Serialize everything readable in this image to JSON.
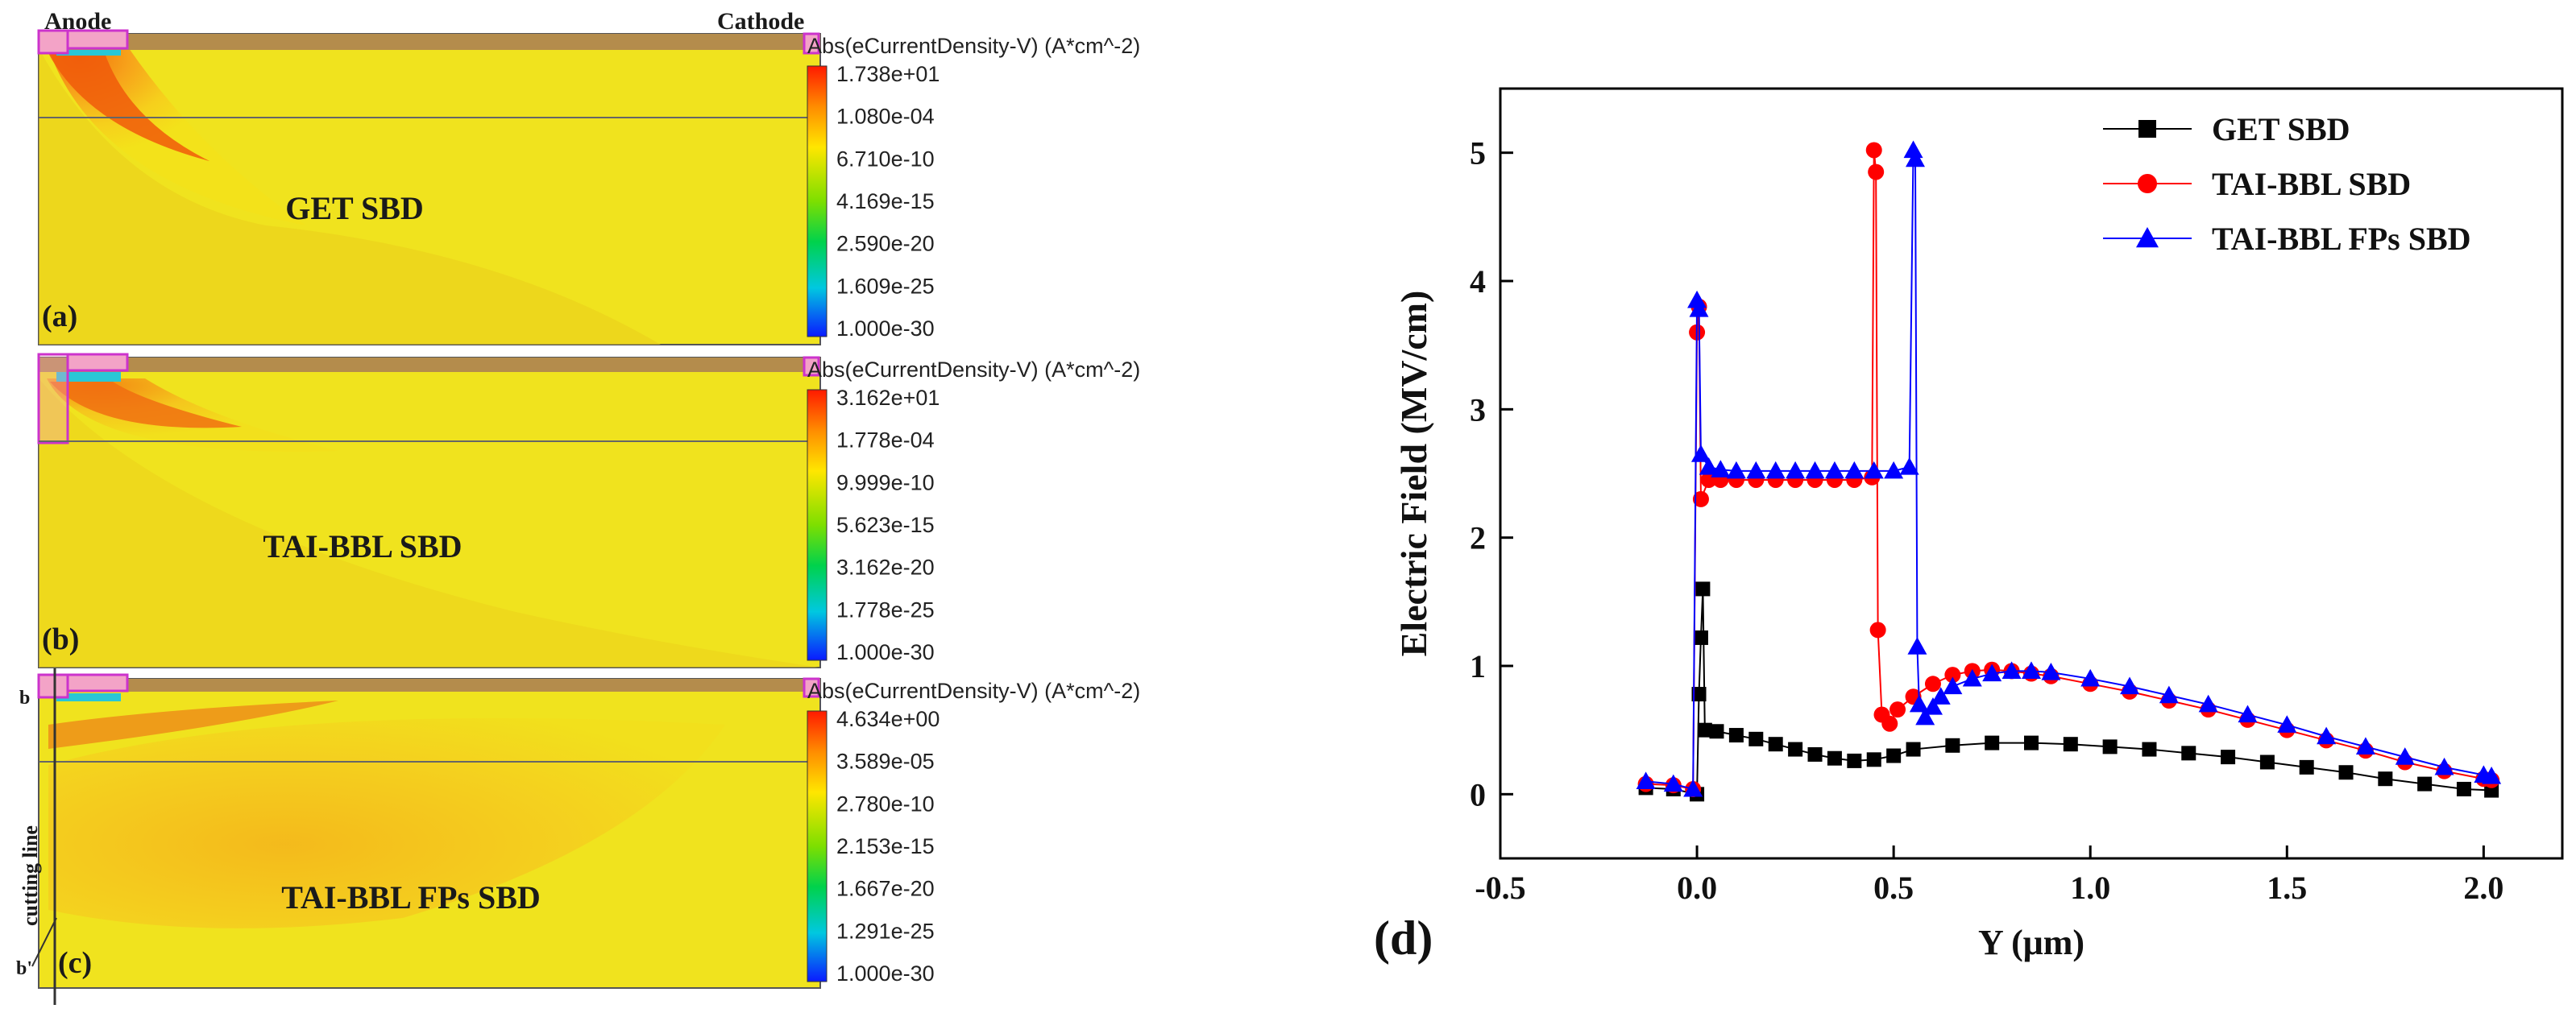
{
  "panels": {
    "anode_label": "Anode",
    "cathode_label": "Cathode",
    "cut_top": "b",
    "cut_bottom": "b'",
    "cutting_line_label": "cutting line",
    "items": [
      {
        "letter": "(a)",
        "device": "GET SBD",
        "colorbar_title": "Abs(eCurrentDensity-V) (A*cm^-2)",
        "ticks": [
          "1.738e+01",
          "1.080e-04",
          "6.710e-10",
          "4.169e-15",
          "2.590e-20",
          "1.609e-25",
          "1.000e-30"
        ]
      },
      {
        "letter": "(b)",
        "device": "TAI-BBL SBD",
        "colorbar_title": "Abs(eCurrentDensity-V) (A*cm^-2)",
        "ticks": [
          "3.162e+01",
          "1.778e-04",
          "9.999e-10",
          "5.623e-15",
          "3.162e-20",
          "1.778e-25",
          "1.000e-30"
        ]
      },
      {
        "letter": "(c)",
        "device": "TAI-BBL FPs SBD",
        "colorbar_title": "Abs(eCurrentDensity-V) (A*cm^-2)",
        "ticks": [
          "4.634e+00",
          "3.589e-05",
          "2.780e-10",
          "2.153e-15",
          "1.667e-20",
          "1.291e-25",
          "1.000e-30"
        ]
      }
    ]
  },
  "chart_data": {
    "type": "line",
    "panel_label": "(d)",
    "title": "",
    "xlabel": "Y (μm)",
    "ylabel": "Electric Field (MV/cm)",
    "xlim": [
      -0.5,
      2.2
    ],
    "ylim": [
      -0.5,
      5.5
    ],
    "xticks": [
      "-0.5",
      "0.0",
      "0.5",
      "1.0",
      "1.5",
      "2.0"
    ],
    "yticks": [
      "0",
      "1",
      "2",
      "3",
      "4",
      "5"
    ],
    "legend_position": "top-right",
    "series": [
      {
        "name": "GET SBD",
        "color": "#000000",
        "marker": "square",
        "x": [
          -0.13,
          -0.06,
          0.0,
          0.005,
          0.01,
          0.015,
          0.02,
          0.05,
          0.1,
          0.15,
          0.2,
          0.25,
          0.3,
          0.35,
          0.4,
          0.45,
          0.5,
          0.55,
          0.65,
          0.75,
          0.85,
          0.95,
          1.05,
          1.15,
          1.25,
          1.35,
          1.45,
          1.55,
          1.65,
          1.75,
          1.85,
          1.95,
          2.02
        ],
        "y": [
          0.05,
          0.04,
          0.0,
          0.78,
          1.22,
          1.6,
          0.5,
          0.49,
          0.46,
          0.43,
          0.39,
          0.35,
          0.31,
          0.28,
          0.26,
          0.27,
          0.3,
          0.35,
          0.38,
          0.4,
          0.4,
          0.39,
          0.37,
          0.35,
          0.32,
          0.29,
          0.25,
          0.21,
          0.17,
          0.12,
          0.08,
          0.04,
          0.03
        ]
      },
      {
        "name": "TAI-BBL SBD",
        "color": "#ff0000",
        "marker": "circle",
        "x": [
          -0.13,
          -0.06,
          -0.01,
          0.0,
          0.005,
          0.01,
          0.03,
          0.06,
          0.1,
          0.15,
          0.2,
          0.25,
          0.3,
          0.35,
          0.4,
          0.445,
          0.45,
          0.455,
          0.46,
          0.47,
          0.49,
          0.51,
          0.55,
          0.6,
          0.65,
          0.7,
          0.75,
          0.8,
          0.85,
          0.9,
          1.0,
          1.1,
          1.2,
          1.3,
          1.4,
          1.5,
          1.6,
          1.7,
          1.8,
          1.9,
          2.0,
          2.02
        ],
        "y": [
          0.08,
          0.07,
          0.04,
          3.6,
          3.8,
          2.3,
          2.45,
          2.45,
          2.45,
          2.45,
          2.45,
          2.45,
          2.45,
          2.45,
          2.45,
          2.47,
          5.02,
          4.85,
          1.28,
          0.62,
          0.55,
          0.66,
          0.76,
          0.86,
          0.93,
          0.96,
          0.97,
          0.96,
          0.94,
          0.92,
          0.86,
          0.8,
          0.73,
          0.66,
          0.58,
          0.5,
          0.42,
          0.34,
          0.25,
          0.18,
          0.12,
          0.11
        ]
      },
      {
        "name": "TAI-BBL FPs SBD",
        "color": "#0000ff",
        "marker": "triangle",
        "x": [
          -0.13,
          -0.06,
          -0.01,
          0.0,
          0.005,
          0.01,
          0.03,
          0.06,
          0.1,
          0.15,
          0.2,
          0.25,
          0.3,
          0.35,
          0.4,
          0.45,
          0.5,
          0.54,
          0.55,
          0.555,
          0.56,
          0.565,
          0.58,
          0.6,
          0.62,
          0.65,
          0.7,
          0.75,
          0.8,
          0.85,
          0.9,
          1.0,
          1.1,
          1.2,
          1.3,
          1.4,
          1.5,
          1.6,
          1.7,
          1.8,
          1.9,
          2.0,
          2.02
        ],
        "y": [
          0.1,
          0.08,
          0.04,
          3.85,
          3.78,
          2.65,
          2.55,
          2.53,
          2.52,
          2.52,
          2.52,
          2.52,
          2.52,
          2.52,
          2.52,
          2.52,
          2.52,
          2.55,
          5.02,
          4.95,
          1.15,
          0.7,
          0.6,
          0.68,
          0.76,
          0.84,
          0.9,
          0.94,
          0.96,
          0.96,
          0.95,
          0.9,
          0.84,
          0.77,
          0.7,
          0.62,
          0.54,
          0.45,
          0.37,
          0.29,
          0.21,
          0.15,
          0.14
        ]
      }
    ]
  }
}
